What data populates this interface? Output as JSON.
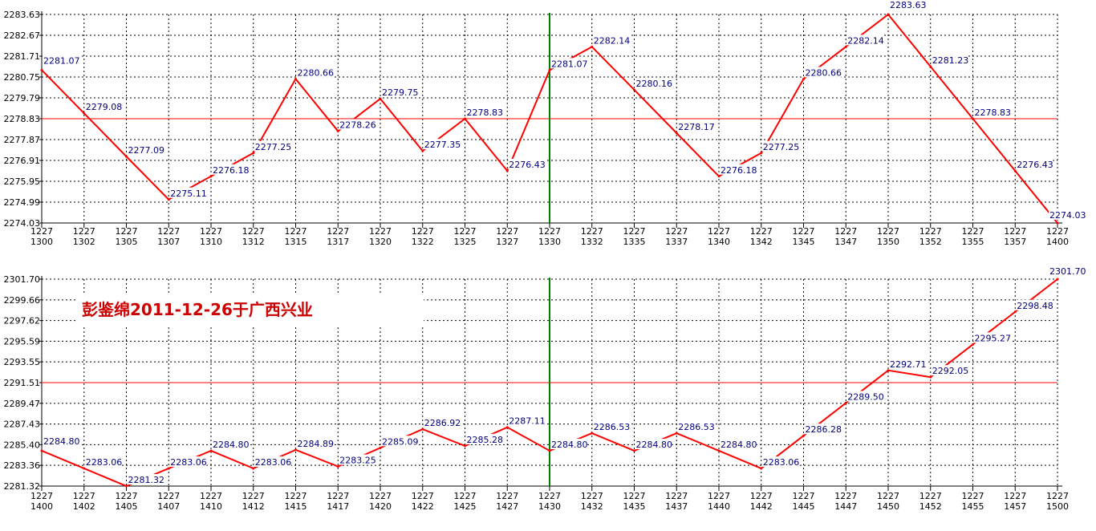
{
  "chart_data": [
    {
      "type": "line",
      "title": "",
      "xlabel": "",
      "ylabel": "",
      "categories": [
        [
          "1227",
          "1300"
        ],
        [
          "1227",
          "1302"
        ],
        [
          "1227",
          "1305"
        ],
        [
          "1227",
          "1307"
        ],
        [
          "1227",
          "1310"
        ],
        [
          "1227",
          "1312"
        ],
        [
          "1227",
          "1315"
        ],
        [
          "1227",
          "1317"
        ],
        [
          "1227",
          "1320"
        ],
        [
          "1227",
          "1322"
        ],
        [
          "1227",
          "1325"
        ],
        [
          "1227",
          "1327"
        ],
        [
          "1227",
          "1330"
        ],
        [
          "1227",
          "1332"
        ],
        [
          "1227",
          "1335"
        ],
        [
          "1227",
          "1337"
        ],
        [
          "1227",
          "1340"
        ],
        [
          "1227",
          "1342"
        ],
        [
          "1227",
          "1345"
        ],
        [
          "1227",
          "1347"
        ],
        [
          "1227",
          "1350"
        ],
        [
          "1227",
          "1352"
        ],
        [
          "1227",
          "1355"
        ],
        [
          "1227",
          "1357"
        ],
        [
          "1227",
          "1400"
        ]
      ],
      "y_ticks": [
        "2283.63",
        "2282.67",
        "2281.71",
        "2280.75",
        "2279.79",
        "2278.83",
        "2277.87",
        "2276.91",
        "2275.95",
        "2274.99",
        "2274.03"
      ],
      "ylim": [
        2274.03,
        2283.63
      ],
      "reference_line": 2278.83,
      "divider_category": 12,
      "series": [
        {
          "color": "#ff0000",
          "values": [
            2281.07,
            2279.08,
            2277.09,
            2275.11,
            2276.18,
            2277.25,
            2280.66,
            2278.26,
            2279.75,
            2277.35,
            2278.83,
            2276.43,
            2281.07,
            2282.14,
            2280.16,
            2278.17,
            2276.18,
            2277.25,
            2280.66,
            2282.14,
            2283.63,
            2281.23,
            2278.83,
            2276.43,
            2274.03
          ],
          "labels": [
            "2281.07",
            "2279.08",
            "2277.09",
            "2275.11",
            "2276.18",
            "2277.25",
            "2280.66",
            "2278.26",
            "2279.75",
            "2277.35",
            "2278.83",
            "2276.43",
            "2281.07",
            "2282.14",
            "2280.16",
            "2278.17",
            "2276.18",
            "2277.25",
            "2280.66",
            "2282.14",
            "2283.63",
            "2281.23",
            "2278.83",
            "2276.43",
            "2274.03"
          ]
        }
      ],
      "grid": true,
      "colors": {
        "line": "#ff0000",
        "label": "#000080",
        "divider": "#008000",
        "grid": "#000000"
      }
    },
    {
      "type": "line",
      "title": "",
      "xlabel": "",
      "ylabel": "",
      "annotation": "彭鉴绵2011-12-26于广西兴业",
      "categories": [
        [
          "1227",
          "1400"
        ],
        [
          "1227",
          "1402"
        ],
        [
          "1227",
          "1405"
        ],
        [
          "1227",
          "1407"
        ],
        [
          "1227",
          "1410"
        ],
        [
          "1227",
          "1412"
        ],
        [
          "1227",
          "1415"
        ],
        [
          "1227",
          "1417"
        ],
        [
          "1227",
          "1420"
        ],
        [
          "1227",
          "1422"
        ],
        [
          "1227",
          "1425"
        ],
        [
          "1227",
          "1427"
        ],
        [
          "1227",
          "1430"
        ],
        [
          "1227",
          "1432"
        ],
        [
          "1227",
          "1435"
        ],
        [
          "1227",
          "1437"
        ],
        [
          "1227",
          "1440"
        ],
        [
          "1227",
          "1442"
        ],
        [
          "1227",
          "1445"
        ],
        [
          "1227",
          "1447"
        ],
        [
          "1227",
          "1450"
        ],
        [
          "1227",
          "1452"
        ],
        [
          "1227",
          "1455"
        ],
        [
          "1227",
          "1457"
        ],
        [
          "1227",
          "1500"
        ]
      ],
      "y_ticks": [
        "2301.70",
        "2299.66",
        "2297.62",
        "2295.59",
        "2293.55",
        "2291.51",
        "2289.47",
        "2287.43",
        "2285.40",
        "2283.36",
        "2281.32"
      ],
      "ylim": [
        2281.32,
        2301.7
      ],
      "reference_line": 2291.51,
      "divider_category": 12,
      "series": [
        {
          "color": "#ff0000",
          "values": [
            2284.8,
            2283.06,
            2281.32,
            2283.06,
            2284.8,
            2283.06,
            2284.89,
            2283.25,
            2285.09,
            2286.92,
            2285.28,
            2287.11,
            2284.8,
            2286.53,
            2284.8,
            2286.53,
            2284.8,
            2283.06,
            2286.28,
            2289.5,
            2292.71,
            2292.05,
            2295.27,
            2298.48,
            2301.7
          ],
          "labels": [
            "2284.80",
            "2283.06",
            "2281.32",
            "2283.06",
            "2284.80",
            "2283.06",
            "2284.89",
            "2283.25",
            "2285.09",
            "2286.92",
            "2285.28",
            "2287.11",
            "2284.80",
            "2286.53",
            "2284.80",
            "2286.53",
            "2284.80",
            "2283.06",
            "2286.28",
            "2289.50",
            "2292.71",
            "2292.05",
            "2295.27",
            "2298.48",
            "2301.70"
          ]
        }
      ],
      "grid": true,
      "colors": {
        "line": "#ff0000",
        "label": "#000080",
        "divider": "#008000",
        "grid": "#000000",
        "annotation": "#cc0000"
      }
    }
  ]
}
